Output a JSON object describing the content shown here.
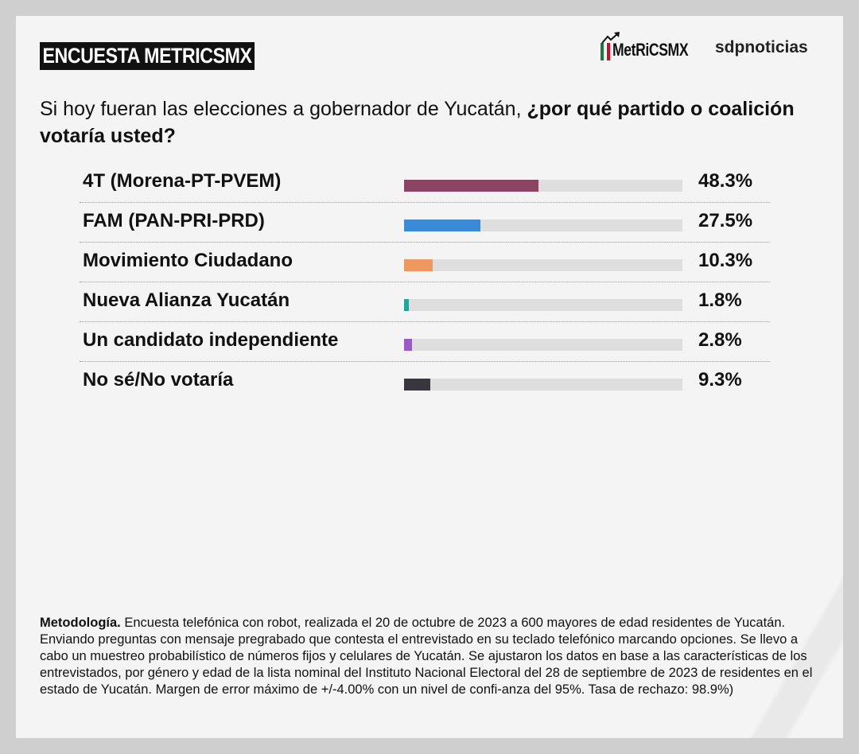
{
  "header": {
    "badge": "ENCUESTA METRICSMX",
    "logo_metrics": "MetRiCSMX",
    "logo_sdp": "sdpnoticias"
  },
  "question": {
    "normal": "Si hoy fueran las elecciones a  gobernador de Yucatán, ",
    "bold": "¿por qué partido o coalición votaría usted?"
  },
  "colors": {
    "track": "#dedede",
    "flag": [
      "#1a7a3a",
      "#ffffff",
      "#c8102e"
    ]
  },
  "chart_data": {
    "type": "bar",
    "orientation": "horizontal",
    "title": "Si hoy fueran las elecciones a gobernador de Yucatán, ¿por qué partido o coalición votaría usted?",
    "categories": [
      "4T (Morena-PT-PVEM)",
      "FAM (PAN-PRI-PRD)",
      "Movimiento Ciudadano",
      "Nueva Alianza Yucatán",
      "Un candidato independiente",
      "No sé/No votaría"
    ],
    "values": [
      48.3,
      27.5,
      10.3,
      1.8,
      2.8,
      9.3
    ],
    "labels": [
      "48.3%",
      "27.5%",
      "10.3%",
      "1.8%",
      "2.8%",
      "9.3%"
    ],
    "colors": [
      "#8b4563",
      "#3a8ad6",
      "#f0975f",
      "#1aa89a",
      "#9b59c9",
      "#3a363d"
    ],
    "xlim": [
      0,
      100
    ],
    "unit": "%"
  },
  "methodology": {
    "title": "Metodología.",
    "text": " Encuesta telefónica con robot, realizada el 20 de octubre de 2023 a 600 mayores de edad residentes de Yucatán. Enviando preguntas con mensaje pregrabado que contesta el entrevistado en su teclado telefónico marcando opciones. Se llevo a cabo un muestreo probabilístico de números fijos y celulares de Yucatán. Se ajustaron los datos en base a las características de los entrevistados, por género y edad de la lista nominal del Instituto Nacional Electoral del 28 de septiembre de 2023 de residentes en el estado de Yucatán. Margen de error máximo de +/-4.00% con un nivel de confi-anza del 95%. Tasa de rechazo: 98.9%)"
  }
}
